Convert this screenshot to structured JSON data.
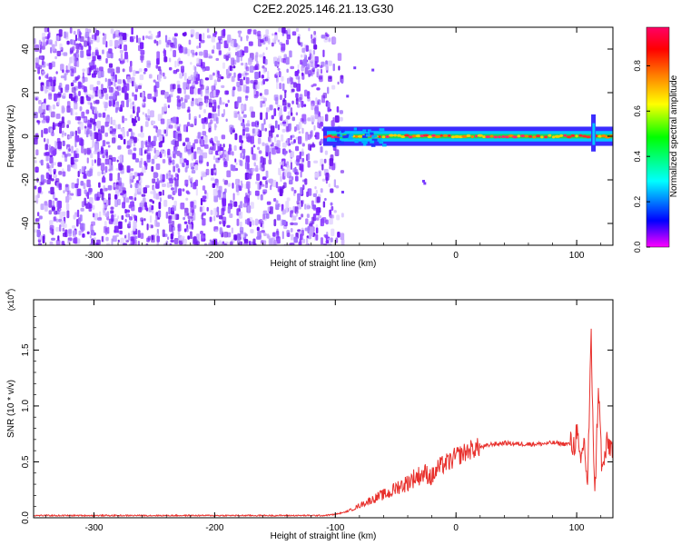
{
  "title": "C2E2.2025.146.21.13.G30",
  "chart_data": [
    {
      "type": "heatmap",
      "xlabel": "Height of straight line (km)",
      "ylabel": "Frequency (Hz)",
      "xlim": [
        -350,
        130
      ],
      "ylim": [
        -50,
        50
      ],
      "xticks": [
        -300,
        -200,
        -100,
        0,
        100
      ],
      "yticks": [
        -40,
        -20,
        0,
        20,
        40
      ],
      "noise_region_x": [
        -350,
        -95
      ],
      "signal_band": {
        "x_start": -110,
        "x_end": 130,
        "freq_center": 0,
        "freq_halfwidth": 2
      },
      "colorbar": {
        "label": "Normalized spectral amplitude",
        "range": [
          0.0,
          0.97
        ],
        "ticks": [
          "0.0",
          "0.2",
          "0.4",
          "0.6",
          "0.8"
        ],
        "colormap": [
          "#ff00ff",
          "#0000ff",
          "#00ffff",
          "#00ff00",
          "#ffff00",
          "#ff8000",
          "#ff0000",
          "#ff0066"
        ]
      },
      "grid": false
    },
    {
      "type": "line",
      "xlabel": "Height of straight line (km)",
      "ylabel": "SNR (10 * v/v)",
      "multiplier_label": "(x10",
      "multiplier_exp": "4",
      "xlim": [
        -350,
        130
      ],
      "ylim": [
        0,
        1.95
      ],
      "xticks": [
        -300,
        -200,
        -100,
        0,
        100
      ],
      "yticks": [
        "0.0",
        "0.5",
        "1.0",
        "1.5"
      ],
      "series": [
        {
          "color": "#e8302c",
          "x": [
            -350,
            -300,
            -250,
            -200,
            -150,
            -110,
            -100,
            -92,
            -85,
            -78,
            -70,
            -62,
            -55,
            -48,
            -42,
            -36,
            -30,
            -25,
            -20,
            -15,
            -10,
            -5,
            0,
            5,
            10,
            15,
            20,
            25,
            30,
            35,
            40,
            50,
            60,
            70,
            80,
            90,
            95,
            98,
            100,
            103,
            106,
            109,
            112,
            115,
            118,
            121,
            125,
            130
          ],
          "y": [
            0.02,
            0.02,
            0.02,
            0.02,
            0.02,
            0.02,
            0.03,
            0.05,
            0.08,
            0.12,
            0.16,
            0.2,
            0.22,
            0.28,
            0.3,
            0.35,
            0.38,
            0.4,
            0.36,
            0.44,
            0.48,
            0.5,
            0.55,
            0.57,
            0.6,
            0.62,
            0.63,
            0.64,
            0.66,
            0.66,
            0.67,
            0.66,
            0.66,
            0.66,
            0.67,
            0.66,
            0.66,
            0.64,
            0.8,
            0.45,
            0.7,
            0.3,
            1.6,
            0.15,
            1.2,
            0.4,
            0.65,
            0.64
          ]
        }
      ],
      "grid": false
    }
  ]
}
